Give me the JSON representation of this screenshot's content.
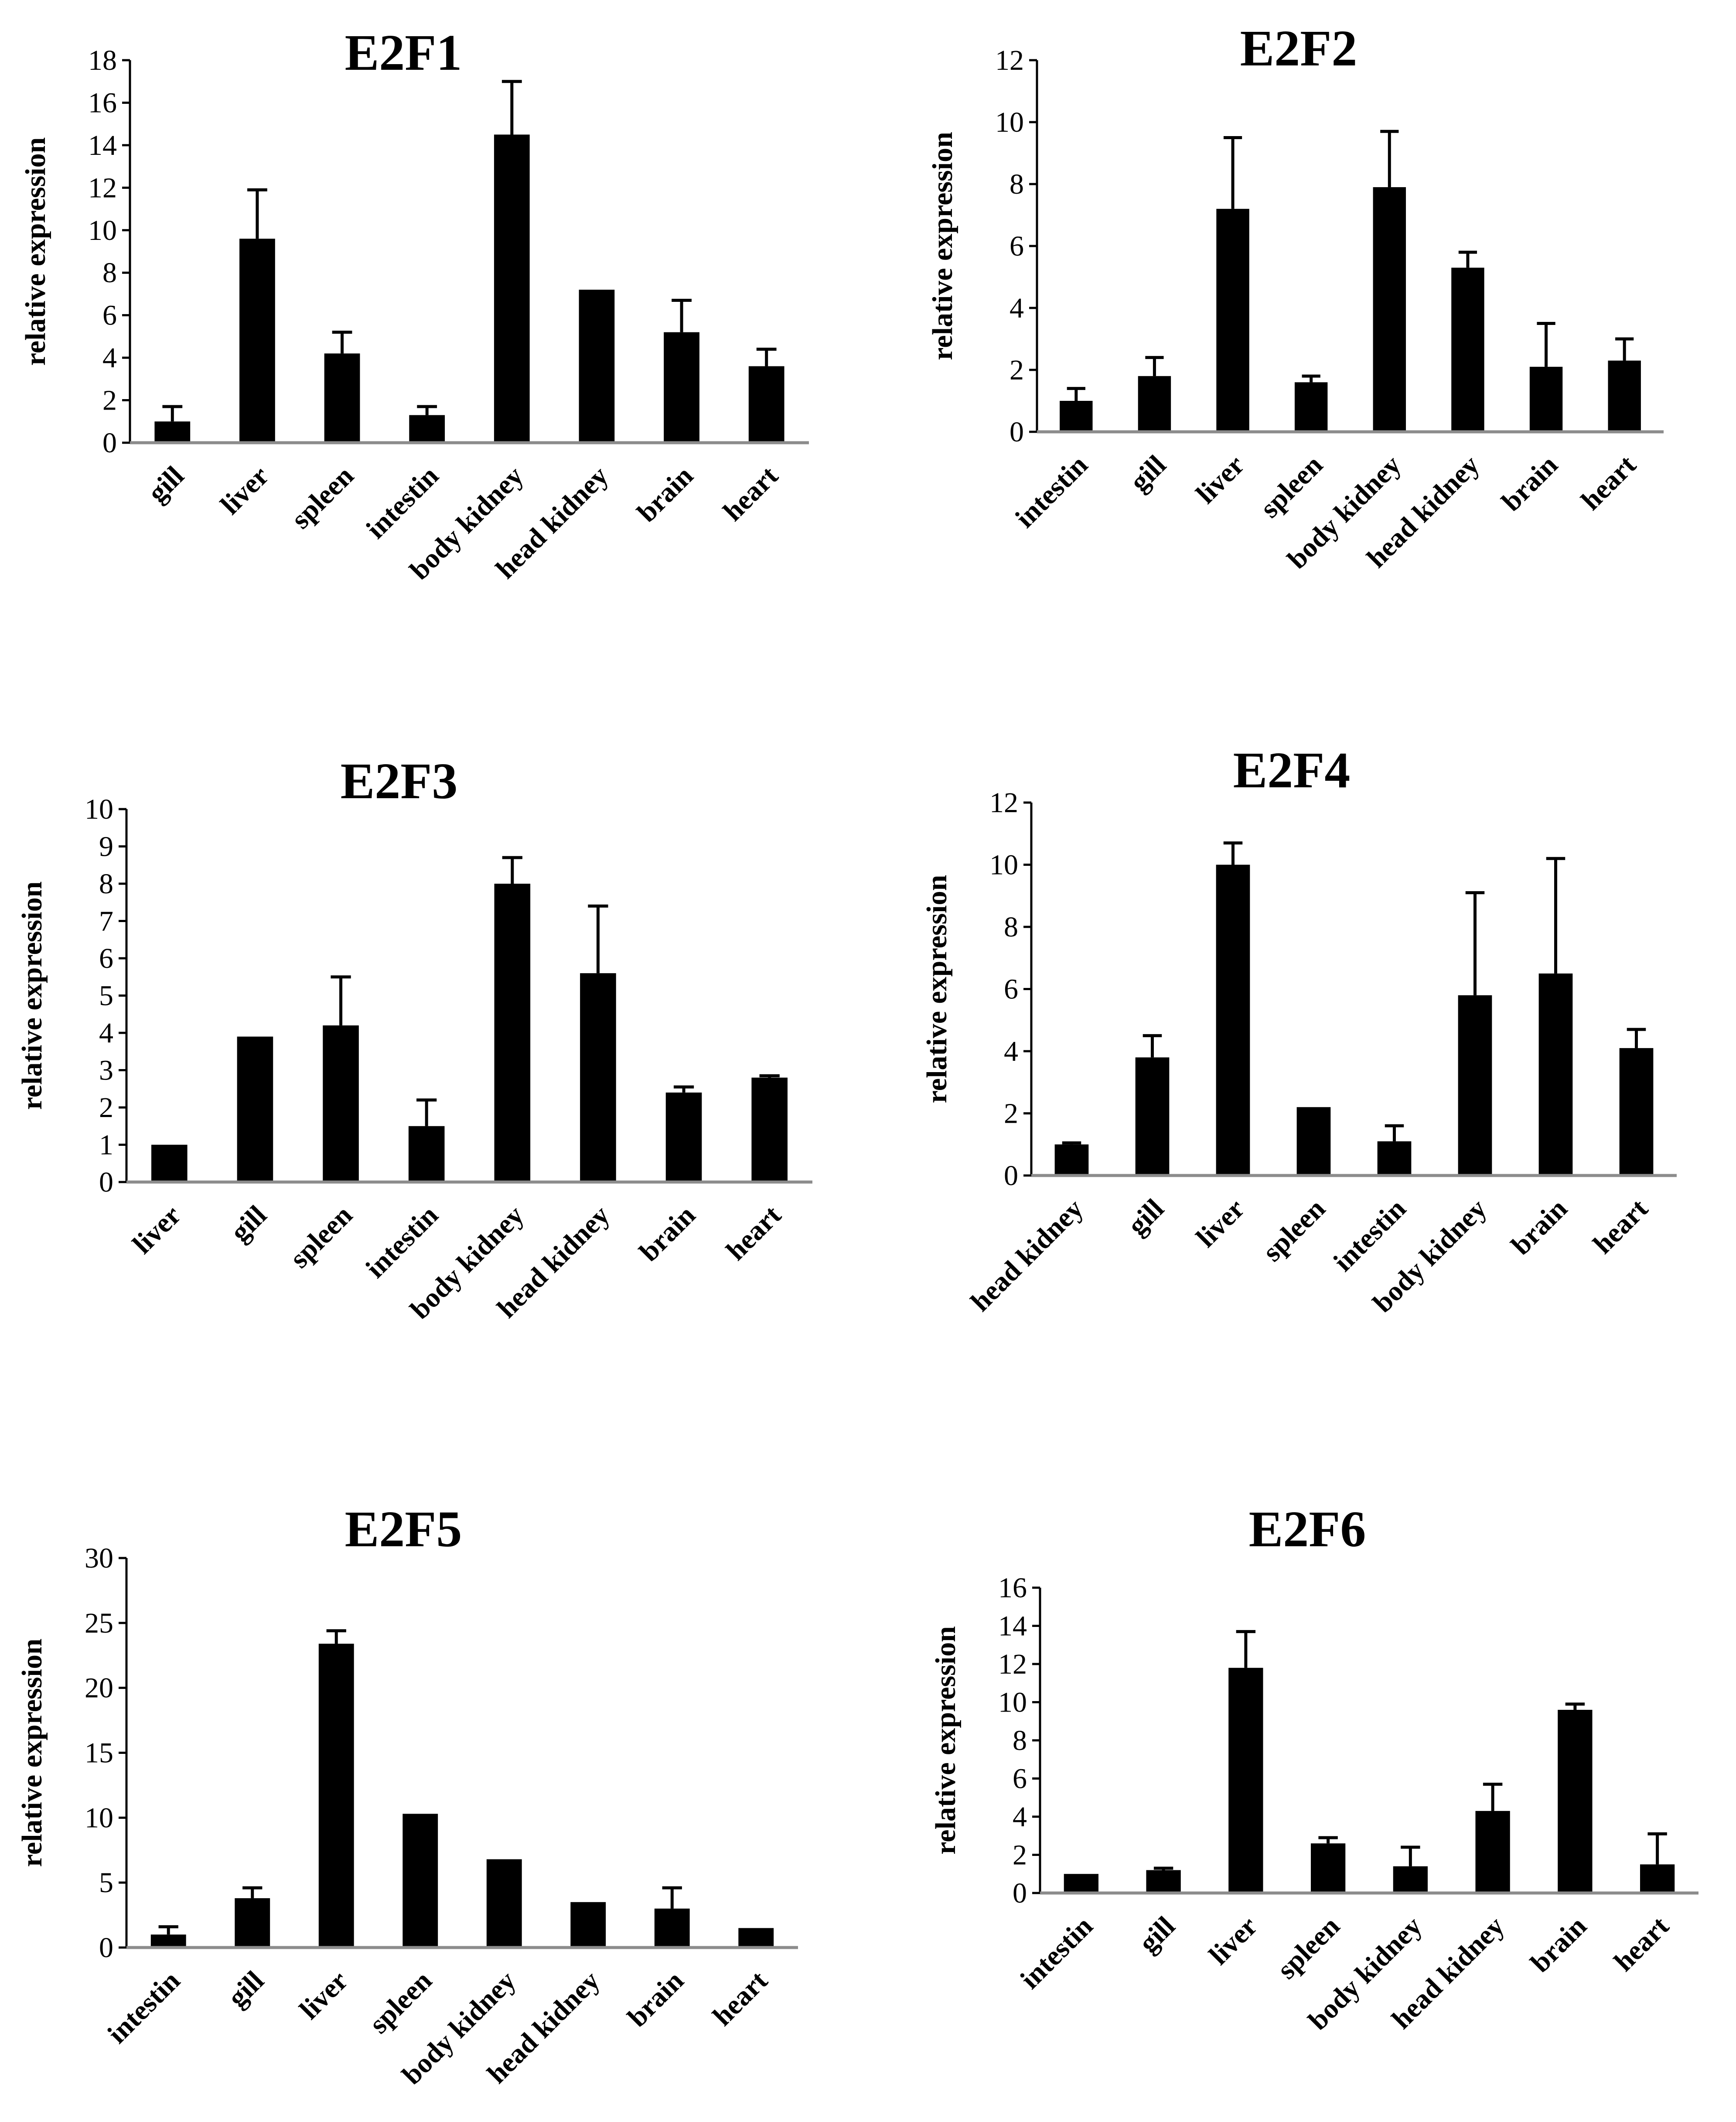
{
  "chart_data": [
    {
      "type": "bar",
      "title": "E2F1",
      "ylabel": "relative expression",
      "xlabel": "",
      "categories": [
        "gill",
        "liver",
        "spleen",
        "intestin",
        "body kidney",
        "head kidney",
        "brain",
        "heart"
      ],
      "values": [
        1.0,
        9.6,
        4.2,
        1.3,
        14.5,
        7.2,
        5.2,
        3.6
      ],
      "errors": [
        0.7,
        2.3,
        1.0,
        0.4,
        2.5,
        0.0,
        1.5,
        0.8
      ],
      "ylim": [
        0,
        18
      ],
      "yticks": [
        0,
        2,
        4,
        6,
        8,
        10,
        12,
        14,
        16,
        18
      ]
    },
    {
      "type": "bar",
      "title": "E2F2",
      "ylabel": "relative expression",
      "xlabel": "",
      "categories": [
        "intestin",
        "gill",
        "liver",
        "spleen",
        "body kidney",
        "head kidney",
        "brain",
        "heart"
      ],
      "values": [
        1.0,
        1.8,
        7.2,
        1.6,
        7.9,
        5.3,
        2.1,
        2.3
      ],
      "errors": [
        0.4,
        0.6,
        2.3,
        0.2,
        1.8,
        0.5,
        1.4,
        0.7
      ],
      "ylim": [
        0,
        12
      ],
      "yticks": [
        0,
        2,
        4,
        6,
        8,
        10,
        12
      ]
    },
    {
      "type": "bar",
      "title": "E2F3",
      "ylabel": "relative expression",
      "xlabel": "",
      "categories": [
        "liver",
        "gill",
        "spleen",
        "intestin",
        "body kidney",
        "head kidney",
        "brain",
        "heart"
      ],
      "values": [
        1.0,
        3.9,
        4.2,
        1.5,
        8.0,
        5.6,
        2.4,
        2.8
      ],
      "errors": [
        0.0,
        0.0,
        1.3,
        0.7,
        0.7,
        1.8,
        0.15,
        0.05
      ],
      "ylim": [
        0,
        10
      ],
      "yticks": [
        0,
        1,
        2,
        3,
        4,
        5,
        6,
        7,
        8,
        9,
        10
      ]
    },
    {
      "type": "bar",
      "title": "E2F4",
      "ylabel": "relative expression",
      "xlabel": "",
      "categories": [
        "head kidney",
        "gill",
        "liver",
        "spleen",
        "intestin",
        "body kidney",
        "brain",
        "heart"
      ],
      "values": [
        1.0,
        3.8,
        10.0,
        2.2,
        1.1,
        5.8,
        6.5,
        4.1
      ],
      "errors": [
        0.05,
        0.7,
        0.7,
        0.0,
        0.5,
        3.3,
        3.7,
        0.6
      ],
      "ylim": [
        0,
        12
      ],
      "yticks": [
        0,
        2,
        4,
        6,
        8,
        10,
        12
      ]
    },
    {
      "type": "bar",
      "title": "E2F5",
      "ylabel": "relative expression",
      "xlabel": "",
      "categories": [
        "intestin",
        "gill",
        "liver",
        "spleen",
        "body kidney",
        "head kidney",
        "brain",
        "heart"
      ],
      "values": [
        1.0,
        3.8,
        23.4,
        10.3,
        6.8,
        3.5,
        3.0,
        1.5
      ],
      "errors": [
        0.6,
        0.8,
        1.0,
        0.0,
        0.0,
        0.0,
        1.6,
        0.0
      ],
      "ylim": [
        0,
        30
      ],
      "yticks": [
        0,
        5,
        10,
        15,
        20,
        25,
        30
      ]
    },
    {
      "type": "bar",
      "title": "E2F6",
      "ylabel": "relative expression",
      "xlabel": "",
      "categories": [
        "intestin",
        "gill",
        "liver",
        "spleen",
        "body kidney",
        "head kidney",
        "brain",
        "heart"
      ],
      "values": [
        1.0,
        1.2,
        11.8,
        2.6,
        1.4,
        4.3,
        9.6,
        1.5
      ],
      "errors": [
        0.0,
        0.1,
        1.9,
        0.3,
        1.0,
        1.4,
        0.3,
        1.6
      ],
      "ylim": [
        0,
        16
      ],
      "yticks": [
        0,
        2,
        4,
        6,
        8,
        10,
        12,
        14,
        16
      ]
    }
  ]
}
